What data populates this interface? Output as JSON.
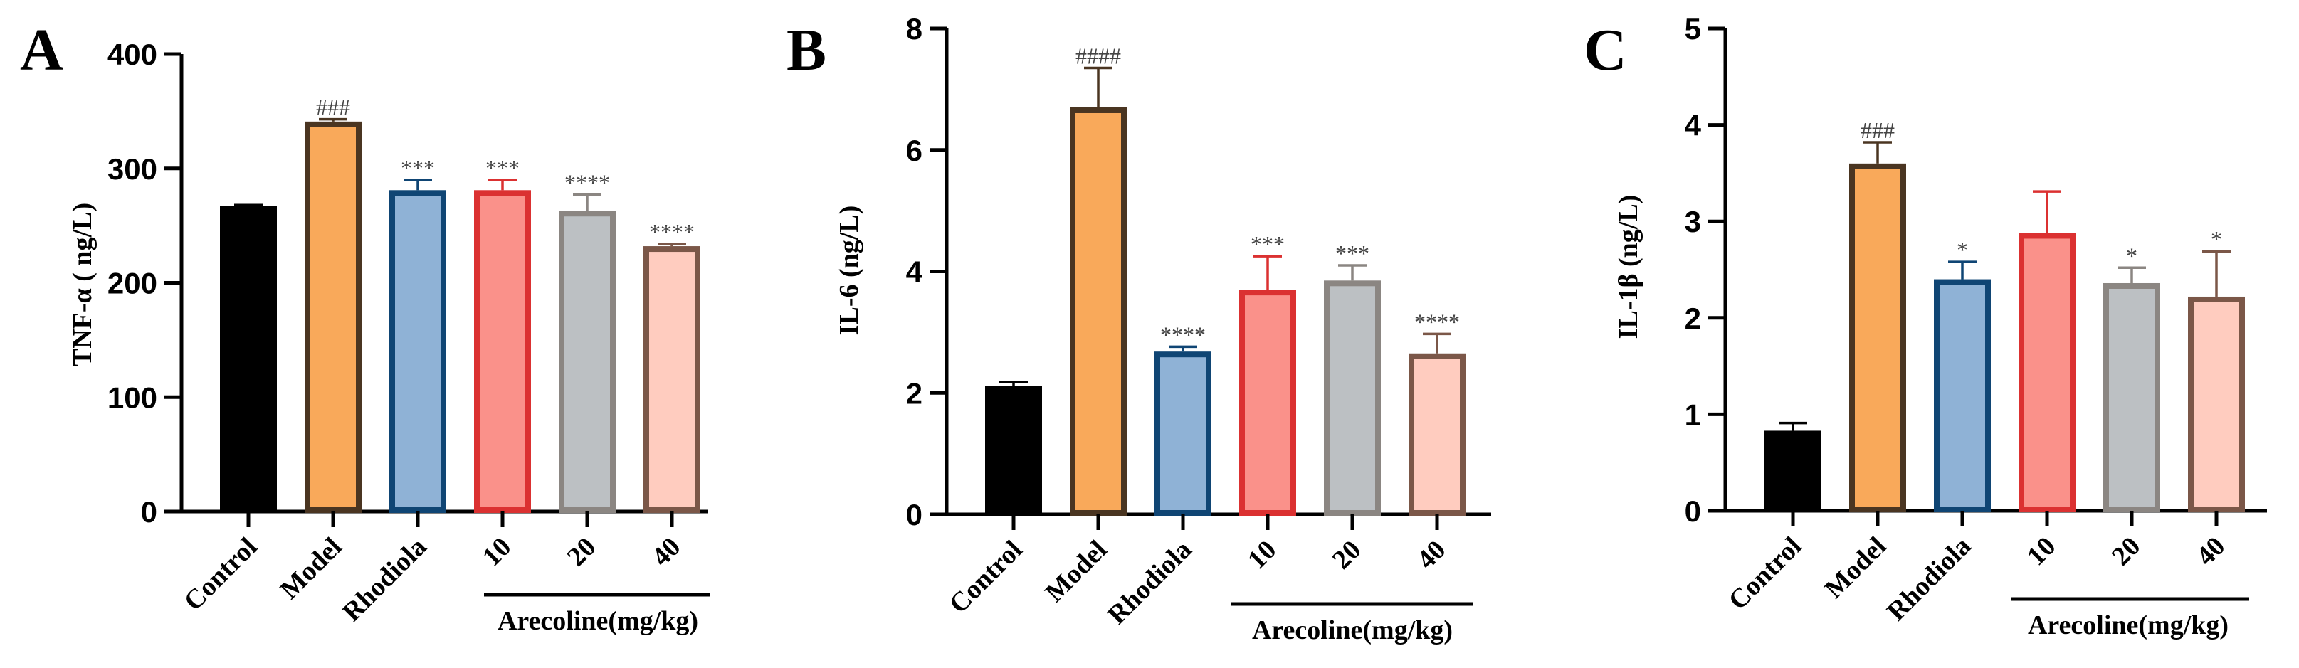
{
  "colors": {
    "Control": {
      "fill": "#000000",
      "stroke": "#000000"
    },
    "Model": {
      "fill": "#F9A95A",
      "stroke": "#4A3521"
    },
    "Rhodiola": {
      "fill": "#8FB2D6",
      "stroke": "#0F4574"
    },
    "10": {
      "fill": "#FA918A",
      "stroke": "#DB3131"
    },
    "20": {
      "fill": "#BCC0C3",
      "stroke": "#8B8682"
    },
    "40": {
      "fill": "#FFCCBF",
      "stroke": "#7B5748"
    }
  },
  "chart_data": [
    {
      "type": "bar",
      "panel": "A",
      "ylabel": "TNF-α ( ng/L)",
      "ylim": [
        0,
        400
      ],
      "yticks": [
        0,
        100,
        200,
        300,
        400
      ],
      "categories": [
        "Control",
        "Model",
        "Rhodiola",
        "10",
        "20",
        "40"
      ],
      "values": [
        267,
        341,
        281,
        281,
        263,
        232
      ],
      "errors": [
        1,
        2,
        9,
        9,
        14,
        2
      ],
      "annotations": [
        "",
        "###",
        "***",
        "***",
        "****",
        "****"
      ],
      "group_label": "Arecoline(mg/kg)"
    },
    {
      "type": "bar",
      "panel": "B",
      "ylabel": "IL-6 (ng/L)",
      "ylim": [
        0,
        8
      ],
      "yticks": [
        0,
        2,
        4,
        6,
        8
      ],
      "categories": [
        "Control",
        "Model",
        "Rhodiola",
        "10",
        "20",
        "40"
      ],
      "values": [
        2.12,
        6.7,
        2.68,
        3.7,
        3.85,
        2.65
      ],
      "errors": [
        0.06,
        0.65,
        0.08,
        0.55,
        0.25,
        0.32
      ],
      "annotations": [
        "",
        "####",
        "****",
        "***",
        "***",
        "****"
      ],
      "group_label": "Arecoline(mg/kg)"
    },
    {
      "type": "bar",
      "panel": "C",
      "ylabel": "IL-1β (ng/L)",
      "ylim": [
        0,
        5
      ],
      "yticks": [
        0,
        1,
        2,
        3,
        4,
        5
      ],
      "categories": [
        "Control",
        "Model",
        "Rhodiola",
        "10",
        "20",
        "40"
      ],
      "values": [
        0.83,
        3.6,
        2.4,
        2.88,
        2.36,
        2.22
      ],
      "errors": [
        0.08,
        0.22,
        0.18,
        0.43,
        0.16,
        0.47
      ],
      "annotations": [
        "",
        "###",
        "*",
        "",
        "*",
        "*"
      ],
      "group_label": "Arecoline(mg/kg)"
    }
  ]
}
